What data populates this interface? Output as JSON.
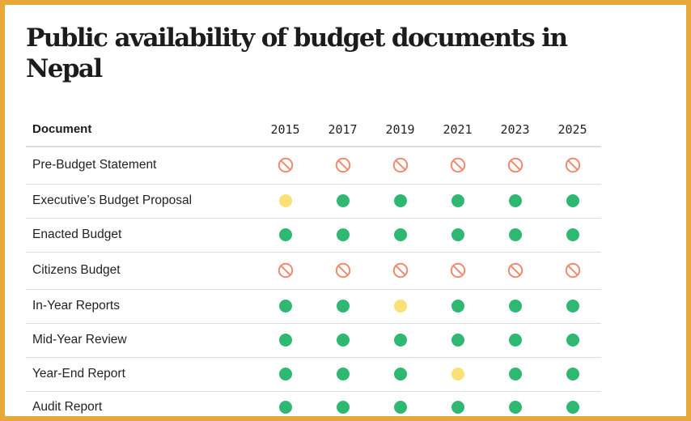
{
  "chart_data": {
    "type": "table",
    "title": "Public availability of budget documents in Nepal",
    "column_header": "Document",
    "years": [
      "2015",
      "2017",
      "2019",
      "2021",
      "2023",
      "2025"
    ],
    "legend": "none",
    "rows": [
      {
        "document": "Pre-Budget Statement",
        "status": [
          "not-available",
          "not-available",
          "not-available",
          "not-available",
          "not-available",
          "not-available"
        ]
      },
      {
        "document": "Executive’s Budget Proposal",
        "status": [
          "partial",
          "available",
          "available",
          "available",
          "available",
          "available"
        ]
      },
      {
        "document": "Enacted Budget",
        "status": [
          "available",
          "available",
          "available",
          "available",
          "available",
          "available"
        ]
      },
      {
        "document": "Citizens Budget",
        "status": [
          "not-available",
          "not-available",
          "not-available",
          "not-available",
          "not-available",
          "not-available"
        ]
      },
      {
        "document": "In-Year Reports",
        "status": [
          "available",
          "available",
          "partial",
          "available",
          "available",
          "available"
        ]
      },
      {
        "document": "Mid-Year Review",
        "status": [
          "available",
          "available",
          "available",
          "available",
          "available",
          "available"
        ]
      },
      {
        "document": "Year-End Report",
        "status": [
          "available",
          "available",
          "available",
          "partial",
          "available",
          "available"
        ]
      },
      {
        "document": "Audit Report",
        "status": [
          "available",
          "available",
          "available",
          "available",
          "available",
          "available"
        ]
      }
    ],
    "colors": {
      "available": "#2eb872",
      "partial": "#fbdf77",
      "not-available": "#f08a6e",
      "frame": "#e8a93a"
    }
  }
}
